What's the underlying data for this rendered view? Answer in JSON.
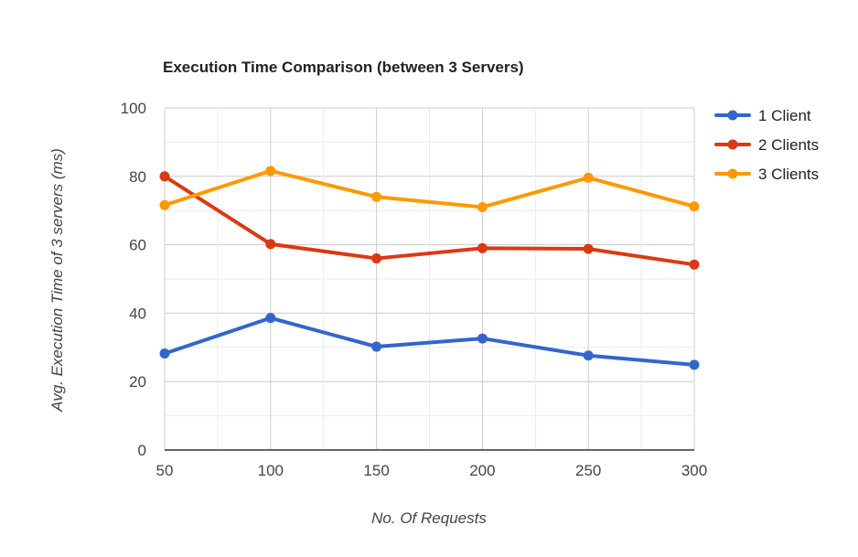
{
  "chart_data": {
    "type": "line",
    "title": "Execution Time Comparison (between 3 Servers)",
    "xlabel": "No. Of Requests",
    "ylabel": "Avg. Execution Time of 3 servers (ms)",
    "x": [
      50,
      100,
      150,
      200,
      250,
      300
    ],
    "xticks": [
      "50",
      "100",
      "150",
      "200",
      "250",
      "300"
    ],
    "yticks": [
      "0",
      "20",
      "40",
      "60",
      "80",
      "100"
    ],
    "ylim": [
      0,
      100
    ],
    "grid": true,
    "legend_position": "right",
    "series": [
      {
        "name": "1 Client",
        "color": "#3366cc",
        "values": [
          28.2,
          38.6,
          30.2,
          32.6,
          27.6,
          24.9
        ]
      },
      {
        "name": "2 Clients",
        "color": "#dc3912",
        "values": [
          80.0,
          60.2,
          56.0,
          59.0,
          58.8,
          54.2
        ]
      },
      {
        "name": "3 Clients",
        "color": "#ff9900",
        "values": [
          71.6,
          81.6,
          74.0,
          71.0,
          79.6,
          71.2
        ]
      }
    ]
  }
}
